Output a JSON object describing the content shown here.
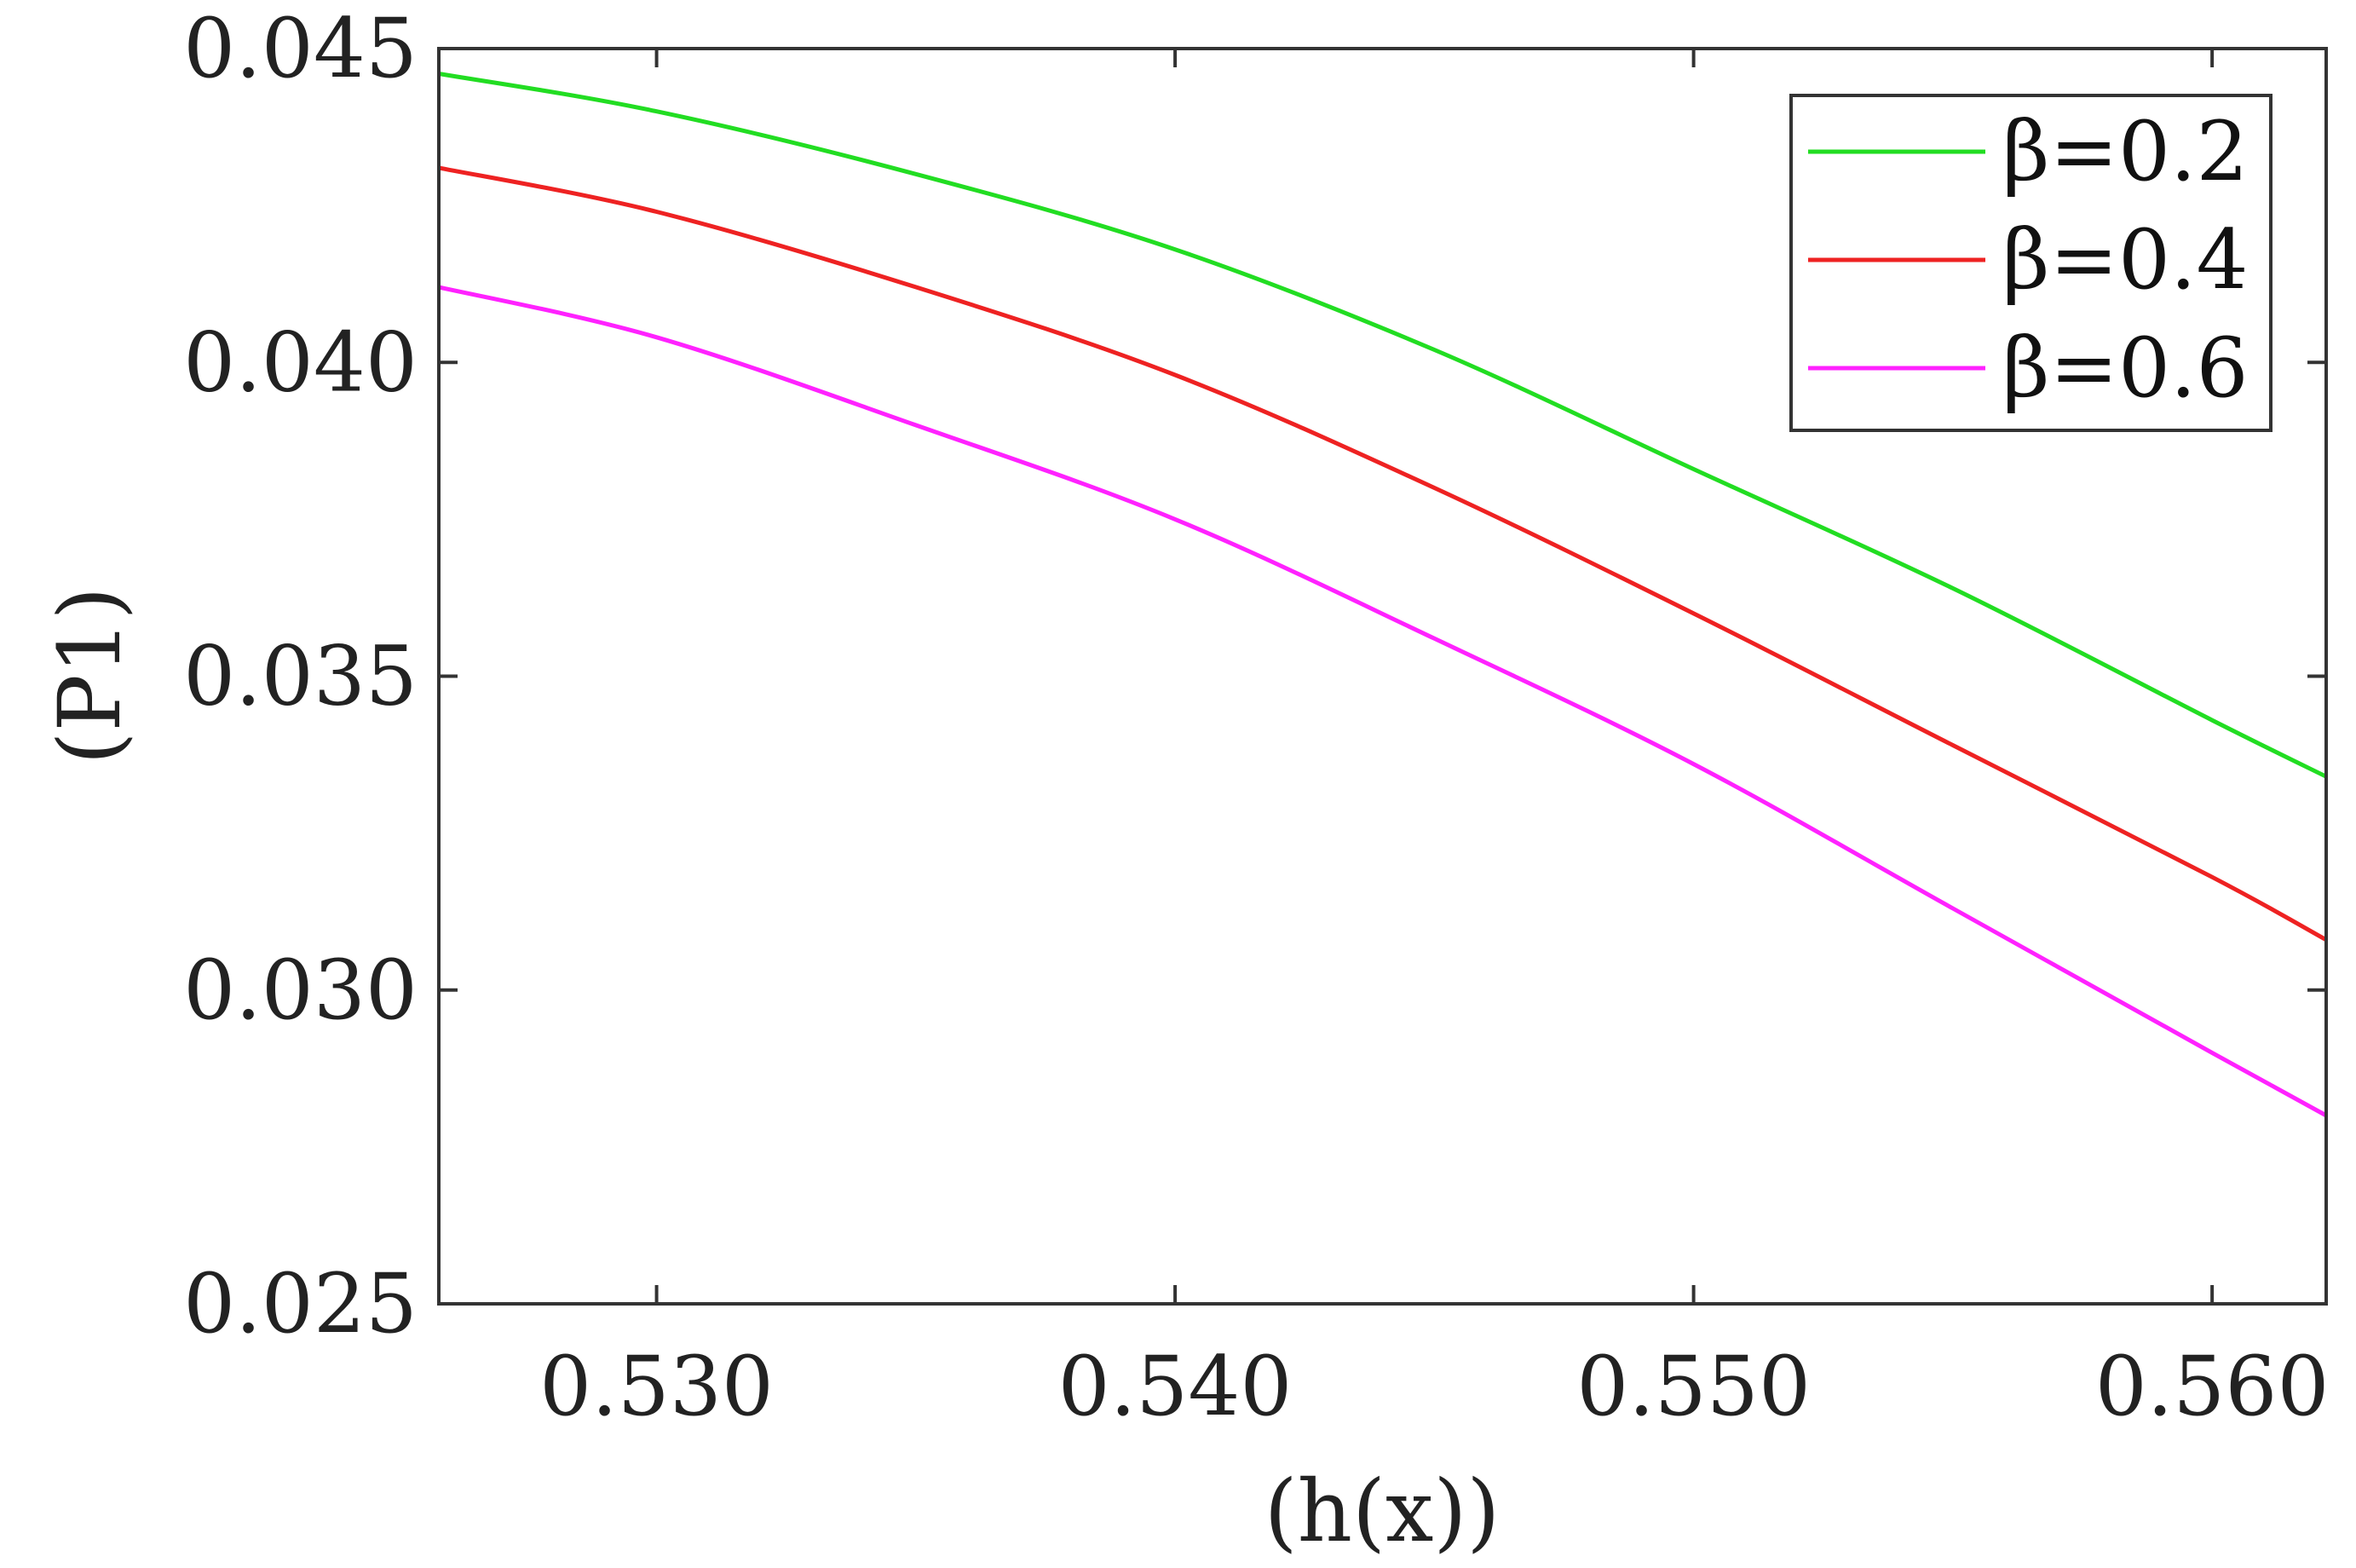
{
  "chart_data": {
    "type": "line",
    "title": "",
    "xlabel": "(h(x))",
    "ylabel": "(P1)",
    "xlim": [
      0.5258,
      0.5622
    ],
    "ylim": [
      0.025,
      0.045
    ],
    "xticks": [
      "0.530",
      "0.540",
      "0.550",
      "0.560"
    ],
    "yticks": [
      "0.025",
      "0.030",
      "0.035",
      "0.040",
      "0.045"
    ],
    "xtick_values": [
      0.53,
      0.54,
      0.55,
      0.56
    ],
    "ytick_values": [
      0.025,
      0.03,
      0.035,
      0.04,
      0.045
    ],
    "grid": false,
    "legend_position": "top-right",
    "x": [
      0.5258,
      0.53,
      0.535,
      0.54,
      0.545,
      0.55,
      0.555,
      0.56,
      0.5622
    ],
    "series": [
      {
        "name": "β=0.2",
        "color": "#22dd22",
        "values": [
          0.0446,
          0.044,
          0.043,
          0.0418,
          0.0402,
          0.0383,
          0.0364,
          0.0343,
          0.0334
        ]
      },
      {
        "name": "β=0.4",
        "color": "#ee2222",
        "values": [
          0.0431,
          0.0424,
          0.0412,
          0.0398,
          0.038,
          0.036,
          0.0339,
          0.0318,
          0.0308
        ]
      },
      {
        "name": "β=0.6",
        "color": "#ff22ff",
        "values": [
          0.0412,
          0.0404,
          0.039,
          0.0375,
          0.0356,
          0.0336,
          0.0313,
          0.029,
          0.028
        ]
      }
    ]
  }
}
